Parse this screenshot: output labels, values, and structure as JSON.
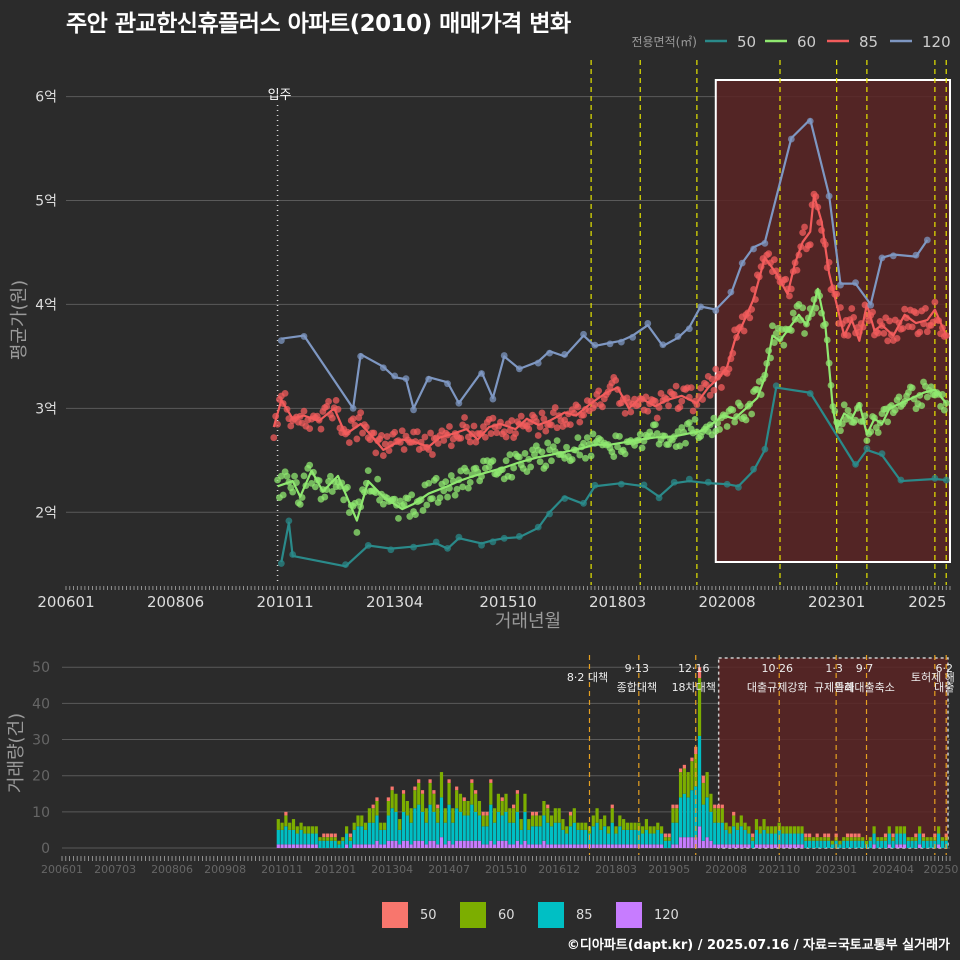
{
  "title": "주안 관교한신휴플러스 아파트(2010) 매매가격 변화",
  "footer": "©디아파트(dapt.kr) / 2025.07.16 / 자료=국토교통부 실거래가",
  "colors": {
    "background": "#2b2b2b",
    "grid": "#5a5a5a",
    "50": "#2a8a8a",
    "60": "#8fe870",
    "85": "#f25c5c",
    "120": "#7e97c2",
    "bar50": "#f8766d",
    "bar60": "#7cae00",
    "bar85": "#00bfc4",
    "bar120": "#c77cff",
    "policy_line": "#e6e600",
    "highlight_fill": "#5a2525",
    "highlight_border": "#ffffff"
  },
  "chart_data": [
    {
      "type": "line",
      "title": "주안 관교한신휴플러스 아파트(2010) 매매가격 변화",
      "xlabel": "거래년월",
      "ylabel": "평균가(원)",
      "x_ticks": [
        "200601",
        "200806",
        "201011",
        "201304",
        "201510",
        "201803",
        "202008",
        "202301",
        "2025"
      ],
      "y_ticks": [
        "2억",
        "3억",
        "4억",
        "5억",
        "6억"
      ],
      "ylim": [
        13000,
        64000
      ],
      "legend_title": "전용면적(㎡)",
      "legend_position": "top-right",
      "series_names": [
        "50",
        "60",
        "85",
        "120"
      ],
      "annotation": "입주",
      "move_in": "2010-09",
      "policy_dates": [
        "2017-08",
        "2018-09",
        "2019-12",
        "2021-10",
        "2023-01",
        "2023-09",
        "2025-03",
        "2025-06"
      ],
      "highlight": [
        "2020-05",
        "2025-07"
      ],
      "series": [
        {
          "name": "50",
          "points": [
            [
              "2010-10",
              15200
            ],
            [
              "2010-12",
              19000
            ],
            [
              "2011-01",
              15800
            ],
            [
              "2012-03",
              14800
            ],
            [
              "2012-09",
              16800
            ],
            [
              "2013-03",
              16500
            ],
            [
              "2013-09",
              16700
            ],
            [
              "2014-03",
              17000
            ],
            [
              "2014-06",
              16500
            ],
            [
              "2014-09",
              17500
            ],
            [
              "2015-03",
              17000
            ],
            [
              "2015-06",
              17300
            ],
            [
              "2015-09",
              17500
            ],
            [
              "2016-01",
              17600
            ],
            [
              "2016-06",
              18500
            ],
            [
              "2016-09",
              20000
            ],
            [
              "2017-01",
              21500
            ],
            [
              "2017-06",
              20800
            ],
            [
              "2017-09",
              22500
            ],
            [
              "2018-04",
              22800
            ],
            [
              "2018-10",
              22500
            ],
            [
              "2019-02",
              21500
            ],
            [
              "2019-06",
              22800
            ],
            [
              "2019-10",
              23000
            ],
            [
              "2020-03",
              22800
            ],
            [
              "2020-08",
              22700
            ],
            [
              "2020-11",
              22500
            ],
            [
              "2021-03",
              24000
            ],
            [
              "2021-06",
              26000
            ],
            [
              "2021-09",
              32000
            ],
            [
              "2022-06",
              31500
            ],
            [
              "2023-06",
              24500
            ],
            [
              "2023-09",
              26000
            ],
            [
              "2024-01",
              25500
            ],
            [
              "2024-06",
              23000
            ],
            [
              "2025-03",
              23200
            ],
            [
              "2025-06",
              23100
            ]
          ]
        },
        {
          "name": "60",
          "points": [
            [
              "2010-09",
              22500
            ],
            [
              "2011-01",
              23000
            ],
            [
              "2011-03",
              21500
            ],
            [
              "2011-06",
              24000
            ],
            [
              "2011-09",
              22000
            ],
            [
              "2012-01",
              23500
            ],
            [
              "2012-06",
              19200
            ],
            [
              "2012-09",
              23000
            ],
            [
              "2013-01",
              21500
            ],
            [
              "2013-06",
              20300
            ],
            [
              "2013-09",
              20800
            ],
            [
              "2014-01",
              21800
            ],
            [
              "2014-06",
              22500
            ],
            [
              "2014-09",
              23000
            ],
            [
              "2015-01",
              23500
            ],
            [
              "2015-06",
              24000
            ],
            [
              "2015-09",
              24300
            ],
            [
              "2016-01",
              24800
            ],
            [
              "2016-06",
              25300
            ],
            [
              "2016-09",
              25500
            ],
            [
              "2017-01",
              25800
            ],
            [
              "2017-06",
              26200
            ],
            [
              "2017-09",
              26500
            ],
            [
              "2018-01",
              26500
            ],
            [
              "2018-06",
              26800
            ],
            [
              "2018-09",
              27000
            ],
            [
              "2019-01",
              27200
            ],
            [
              "2019-06",
              27300
            ],
            [
              "2019-10",
              27600
            ],
            [
              "2020-01",
              27800
            ],
            [
              "2020-04",
              28500
            ],
            [
              "2020-07",
              29300
            ],
            [
              "2020-10",
              29000
            ],
            [
              "2021-01",
              30000
            ],
            [
              "2021-04",
              31000
            ],
            [
              "2021-06",
              33000
            ],
            [
              "2021-08",
              37000
            ],
            [
              "2021-10",
              36500
            ],
            [
              "2022-01",
              38000
            ],
            [
              "2022-03",
              39000
            ],
            [
              "2022-05",
              38000
            ],
            [
              "2022-07",
              40000
            ],
            [
              "2022-08",
              41500
            ],
            [
              "2022-10",
              38000
            ],
            [
              "2022-12",
              30000
            ],
            [
              "2023-01",
              28000
            ],
            [
              "2023-03",
              29500
            ],
            [
              "2023-05",
              29000
            ],
            [
              "2023-07",
              30500
            ],
            [
              "2023-09",
              27500
            ],
            [
              "2023-11",
              29000
            ],
            [
              "2024-01",
              28500
            ],
            [
              "2024-03",
              30000
            ],
            [
              "2024-06",
              30500
            ],
            [
              "2024-09",
              31000
            ],
            [
              "2024-12",
              31500
            ],
            [
              "2025-03",
              31800
            ],
            [
              "2025-06",
              30500
            ]
          ]
        },
        {
          "name": "85",
          "points": [
            [
              "2010-08",
              28200
            ],
            [
              "2010-10",
              30800
            ],
            [
              "2011-01",
              29000
            ],
            [
              "2011-04",
              29300
            ],
            [
              "2011-08",
              28800
            ],
            [
              "2011-12",
              30000
            ],
            [
              "2012-03",
              27500
            ],
            [
              "2012-07",
              28500
            ],
            [
              "2012-10",
              27300
            ],
            [
              "2013-01",
              26000
            ],
            [
              "2013-06",
              27000
            ],
            [
              "2013-09",
              26800
            ],
            [
              "2014-01",
              26300
            ],
            [
              "2014-04",
              27200
            ],
            [
              "2014-07",
              27500
            ],
            [
              "2014-11",
              28000
            ],
            [
              "2015-02",
              27000
            ],
            [
              "2015-05",
              28200
            ],
            [
              "2015-08",
              28500
            ],
            [
              "2015-12",
              28000
            ],
            [
              "2016-03",
              29000
            ],
            [
              "2016-06",
              28400
            ],
            [
              "2016-09",
              28800
            ],
            [
              "2017-01",
              29600
            ],
            [
              "2017-04",
              29300
            ],
            [
              "2017-08",
              30500
            ],
            [
              "2017-12",
              31500
            ],
            [
              "2018-03",
              32000
            ],
            [
              "2018-06",
              30000
            ],
            [
              "2018-09",
              31000
            ],
            [
              "2019-01",
              30200
            ],
            [
              "2019-04",
              30800
            ],
            [
              "2019-08",
              31200
            ],
            [
              "2019-12",
              30500
            ],
            [
              "2020-03",
              32000
            ],
            [
              "2020-06",
              33000
            ],
            [
              "2020-08",
              34000
            ],
            [
              "2020-10",
              36500
            ],
            [
              "2020-12",
              38000
            ],
            [
              "2021-03",
              40500
            ],
            [
              "2021-06",
              44500
            ],
            [
              "2021-09",
              43000
            ],
            [
              "2021-12",
              41000
            ],
            [
              "2022-02",
              44000
            ],
            [
              "2022-04",
              46000
            ],
            [
              "2022-06",
              47000
            ],
            [
              "2022-07",
              50500
            ],
            [
              "2022-09",
              48000
            ],
            [
              "2022-11",
              43000
            ],
            [
              "2023-01",
              40000
            ],
            [
              "2023-03",
              37000
            ],
            [
              "2023-05",
              38500
            ],
            [
              "2023-07",
              36500
            ],
            [
              "2023-09",
              40000
            ],
            [
              "2023-11",
              37500
            ],
            [
              "2024-01",
              38000
            ],
            [
              "2024-04",
              37000
            ],
            [
              "2024-07",
              39000
            ],
            [
              "2024-10",
              38200
            ],
            [
              "2025-01",
              38500
            ],
            [
              "2025-03",
              39500
            ],
            [
              "2025-06",
              37000
            ]
          ]
        },
        {
          "name": "120",
          "points": [
            [
              "2010-10",
              36700
            ],
            [
              "2011-04",
              37000
            ],
            [
              "2012-05",
              30000
            ],
            [
              "2012-07",
              35200
            ],
            [
              "2013-01",
              34000
            ],
            [
              "2013-04",
              33000
            ],
            [
              "2013-07",
              32800
            ],
            [
              "2013-09",
              30000
            ],
            [
              "2014-01",
              33000
            ],
            [
              "2014-06",
              32500
            ],
            [
              "2014-09",
              30500
            ],
            [
              "2015-03",
              33500
            ],
            [
              "2015-06",
              31000
            ],
            [
              "2015-09",
              35000
            ],
            [
              "2016-01",
              33800
            ],
            [
              "2016-06",
              34500
            ],
            [
              "2016-09",
              35500
            ],
            [
              "2017-01",
              35000
            ],
            [
              "2017-06",
              37000
            ],
            [
              "2017-09",
              36000
            ],
            [
              "2018-01",
              36300
            ],
            [
              "2018-04",
              36500
            ],
            [
              "2018-07",
              37000
            ],
            [
              "2018-11",
              38000
            ],
            [
              "2019-03",
              36000
            ],
            [
              "2019-07",
              36800
            ],
            [
              "2019-10",
              37800
            ],
            [
              "2020-01",
              39800
            ],
            [
              "2020-05",
              39500
            ],
            [
              "2020-09",
              41000
            ],
            [
              "2020-12",
              44000
            ],
            [
              "2021-03",
              45500
            ],
            [
              "2021-06",
              46000
            ],
            [
              "2022-01",
              56000
            ],
            [
              "2022-06",
              57800
            ],
            [
              "2022-11",
              50500
            ],
            [
              "2023-02",
              42000
            ],
            [
              "2023-06",
              42000
            ],
            [
              "2023-10",
              40000
            ],
            [
              "2024-01",
              44500
            ],
            [
              "2024-04",
              44800
            ],
            [
              "2024-10",
              44600
            ],
            [
              "2025-01",
              46200
            ]
          ]
        }
      ]
    },
    {
      "type": "bar",
      "xlabel": "",
      "ylabel": "거래량(건)",
      "x_ticks": [
        "200601",
        "200703",
        "200806",
        "200908",
        "201011",
        "201201",
        "201304",
        "201407",
        "201510",
        "201612",
        "201803",
        "201905",
        "202008",
        "202110",
        "202301",
        "202404",
        "20250"
      ],
      "y_ticks": [
        "0",
        "10",
        "20",
        "30",
        "40",
        "50"
      ],
      "ylim": [
        0,
        52
      ],
      "series_names": [
        "50",
        "60",
        "85",
        "120"
      ],
      "annotations": [
        {
          "date": "2017-08",
          "text": "8·2 대책"
        },
        {
          "date": "2018-09",
          "text": "9·13\n종합대책"
        },
        {
          "date": "2019-12",
          "text": "12·16\n18차대책"
        },
        {
          "date": "2021-10",
          "text": "10·26\n대출규제강화"
        },
        {
          "date": "2023-01",
          "text": "1·3\n규제완화"
        },
        {
          "date": "2023-09",
          "text": "9·7\n특례대출축소"
        },
        {
          "date": "2025-03",
          "text": "토허제 해"
        },
        {
          "date": "2025-06",
          "text": "6·2\n대출"
        }
      ],
      "monthly_totals_sample": [
        [
          "2010-10",
          9
        ],
        [
          "2012-01",
          3
        ],
        [
          "2013-04",
          14
        ],
        [
          "2014-07",
          18
        ],
        [
          "2015-10",
          16
        ],
        [
          "2016-12",
          9
        ],
        [
          "2018-03",
          10
        ],
        [
          "2019-05",
          6
        ],
        [
          "2020-01",
          50
        ],
        [
          "2020-03",
          20
        ],
        [
          "2020-08",
          9
        ],
        [
          "2021-10",
          6
        ],
        [
          "2023-01",
          3
        ],
        [
          "2024-04",
          5
        ],
        [
          "2025-04",
          4
        ]
      ]
    }
  ],
  "legend": {
    "title": "전용면적(㎡)",
    "items": [
      {
        "label": "50"
      },
      {
        "label": "60"
      },
      {
        "label": "85"
      },
      {
        "label": "120"
      }
    ]
  },
  "bottom_legend": {
    "items": [
      {
        "label": "50"
      },
      {
        "label": "60"
      },
      {
        "label": "85"
      },
      {
        "label": "120"
      }
    ]
  },
  "top_annotation": "입주"
}
